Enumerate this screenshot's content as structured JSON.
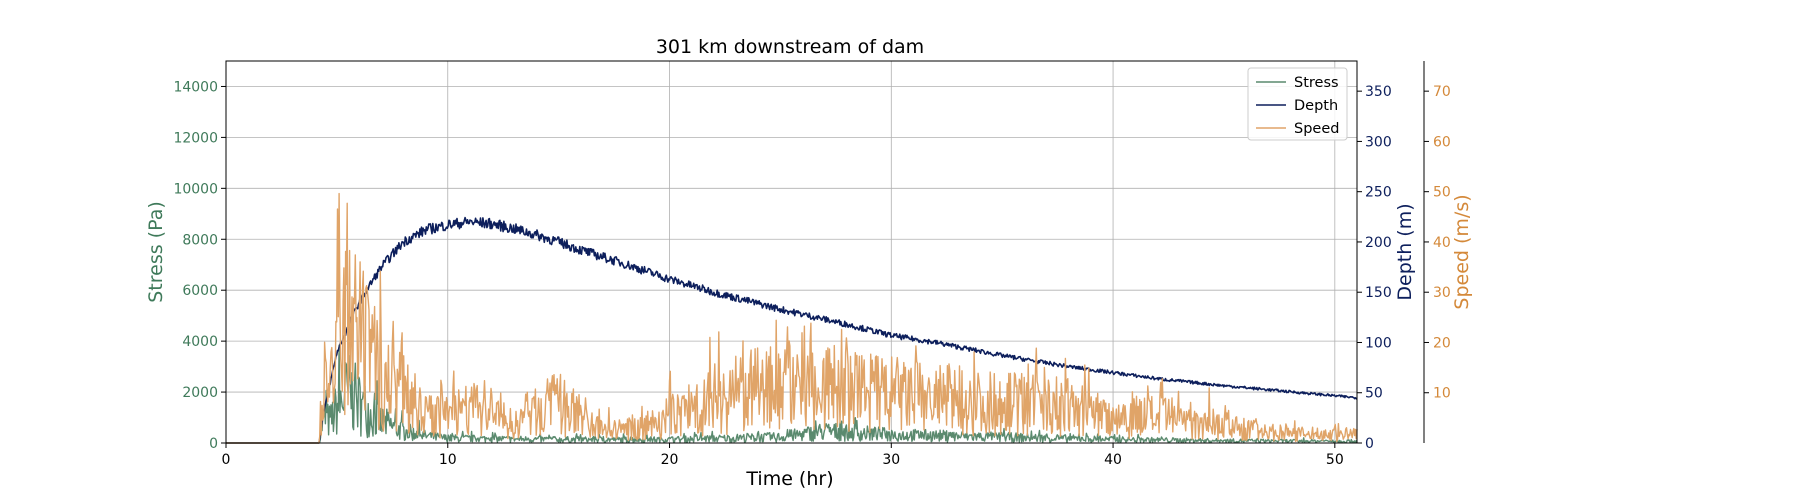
{
  "chart_data": {
    "type": "line",
    "title": "301 km downstream of dam",
    "xlabel": "Time (hr)",
    "xlim": [
      0,
      51
    ],
    "xticks": [
      0,
      10,
      20,
      30,
      40,
      50
    ],
    "grid": true,
    "legend_position": "top-right",
    "axes": {
      "left": {
        "label": "Stress (Pa)",
        "ylim": [
          0,
          15000
        ],
        "ticks": [
          0,
          2000,
          4000,
          6000,
          8000,
          10000,
          12000,
          14000
        ],
        "color": "#3f7a5a"
      },
      "right": {
        "label": "Depth (m)",
        "ylim": [
          0,
          380
        ],
        "ticks": [
          0,
          50,
          100,
          150,
          200,
          250,
          300,
          350
        ],
        "color": "#0d1f5c"
      },
      "right2": {
        "label": "Speed (m/s)",
        "ylim": [
          0,
          76
        ],
        "ticks": [
          10,
          20,
          30,
          40,
          50,
          60,
          70
        ],
        "color": "#d4893a"
      }
    },
    "series": [
      {
        "name": "Stress",
        "axis": "left",
        "color": "#5a8a6e",
        "x": [
          0,
          4.2,
          4.4,
          4.7,
          5.0,
          5.5,
          6.0,
          6.5,
          7.0,
          8.0,
          9.0,
          10.0,
          12.0,
          15.0,
          20.0,
          25.0,
          27.0,
          30.0,
          35.0,
          40.0,
          45.0,
          50.0,
          51.0
        ],
        "y": [
          0,
          0,
          1100,
          900,
          1500,
          2200,
          1700,
          1300,
          900,
          500,
          300,
          200,
          180,
          150,
          150,
          250,
          500,
          350,
          250,
          150,
          100,
          80,
          80
        ]
      },
      {
        "name": "Depth",
        "axis": "right",
        "color": "#0d1f5c",
        "x": [
          0,
          4.2,
          4.4,
          5.0,
          6.0,
          7.0,
          8.0,
          9.0,
          10.0,
          11.0,
          12.0,
          13.0,
          14.0,
          15.0,
          16.0,
          18.0,
          20.0,
          22.0,
          25.0,
          28.0,
          30.0,
          32.0,
          35.0,
          38.0,
          40.0,
          42.0,
          45.0,
          48.0,
          50.0,
          51.0
        ],
        "y": [
          0,
          0,
          30,
          90,
          140,
          175,
          200,
          212,
          217,
          220,
          218,
          213,
          207,
          200,
          192,
          178,
          163,
          150,
          133,
          118,
          107,
          100,
          87,
          76,
          70,
          64,
          57,
          51,
          47,
          45
        ]
      },
      {
        "name": "Speed",
        "axis": "right2",
        "color": "#e0a468",
        "x": [
          0,
          4.2,
          4.4,
          4.7,
          5.0,
          5.5,
          6.0,
          6.5,
          7.0,
          7.5,
          8.0,
          8.5,
          9.0,
          10.0,
          11.0,
          12.0,
          13.0,
          14.0,
          15.0,
          16.0,
          17.0,
          18.0,
          19.0,
          20.0,
          22.0,
          24.0,
          26.0,
          28.0,
          30.0,
          32.0,
          34.0,
          36.0,
          38.0,
          40.0,
          42.0,
          44.0,
          46.0,
          48.0,
          50.0,
          51.0
        ],
        "y": [
          0,
          0,
          18,
          12,
          20,
          25,
          23,
          19,
          15,
          12,
          14,
          8,
          6,
          6,
          8,
          6,
          4,
          7,
          9,
          5,
          3,
          3,
          4,
          6,
          10,
          12,
          14,
          12,
          11,
          10,
          9,
          9,
          8,
          6,
          6,
          5,
          3,
          2,
          2,
          2
        ]
      }
    ]
  }
}
